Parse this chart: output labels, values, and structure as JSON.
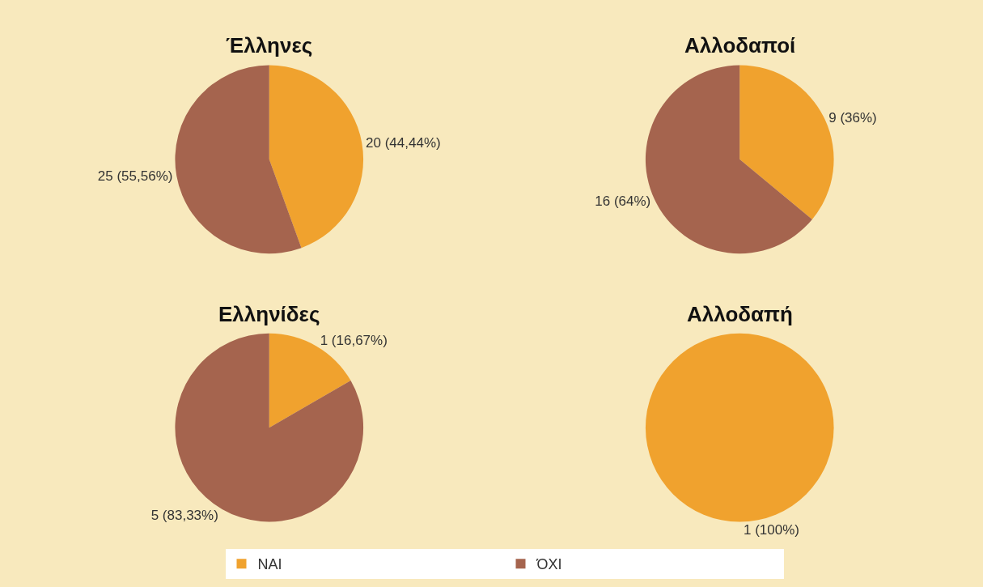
{
  "chart_data": [
    {
      "type": "pie",
      "title": "Έλληνες",
      "categories": [
        "ΝΑΙ",
        "ΌΧΙ"
      ],
      "values": [
        20,
        25
      ],
      "colors": [
        "#f0a22e",
        "#a5644e"
      ],
      "value_labels": [
        "20 (44,44%)",
        "25 (55,56%)"
      ],
      "legend": "bottom"
    },
    {
      "type": "pie",
      "title": "Αλλοδαποί",
      "categories": [
        null,
        null
      ],
      "values": [
        9,
        16
      ],
      "colors": [
        "#f0a22e",
        "#a5644e"
      ],
      "value_labels": [
        "9 (36%)",
        "16 (64%)"
      ]
    },
    {
      "type": "pie",
      "title": "Ελληνίδες",
      "categories": [
        null,
        null
      ],
      "values": [
        1,
        5
      ],
      "colors": [
        "#f0a22e",
        "#a5644e"
      ],
      "value_labels": [
        "1 (16,67%)",
        "5 (83,33%)"
      ]
    },
    {
      "type": "pie",
      "title": "Αλλοδαπή",
      "categories": [
        null,
        null
      ],
      "values": [
        1,
        0
      ],
      "colors": [
        "#f0a22e",
        "#a5644e"
      ],
      "value_labels": [
        "1 (100%)",
        null
      ]
    }
  ]
}
